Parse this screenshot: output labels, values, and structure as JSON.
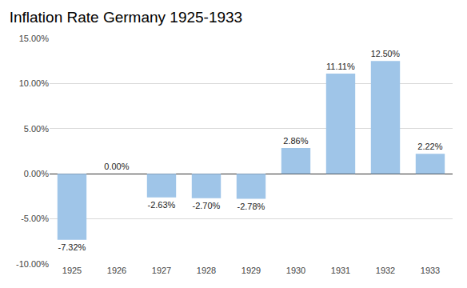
{
  "chart_data": {
    "type": "bar",
    "title": "Inflation Rate Germany 1925-1933",
    "categories": [
      "1925",
      "1926",
      "1927",
      "1928",
      "1929",
      "1930",
      "1931",
      "1932",
      "1933"
    ],
    "values": [
      -7.32,
      0,
      -2.63,
      -2.7,
      -2.78,
      2.86,
      11.11,
      12.5,
      2.22
    ],
    "value_labels": [
      "-7.32%",
      "0.00%",
      "-2.63%",
      "-2.70%",
      "-2.78%",
      "2.86%",
      "11.11%",
      "12.50%",
      "2.22%"
    ],
    "color": "#9fc5e8",
    "ylim": [
      -10,
      15
    ],
    "yticks": [
      {
        "value": -10,
        "label": "-10.00%"
      },
      {
        "value": -5,
        "label": "-5.00%"
      },
      {
        "value": 0,
        "label": "0.00%"
      },
      {
        "value": 5,
        "label": "5.00%"
      },
      {
        "value": 10,
        "label": "10.00%"
      },
      {
        "value": 15,
        "label": "15.00%"
      }
    ],
    "grid": true,
    "data_labels": true
  }
}
